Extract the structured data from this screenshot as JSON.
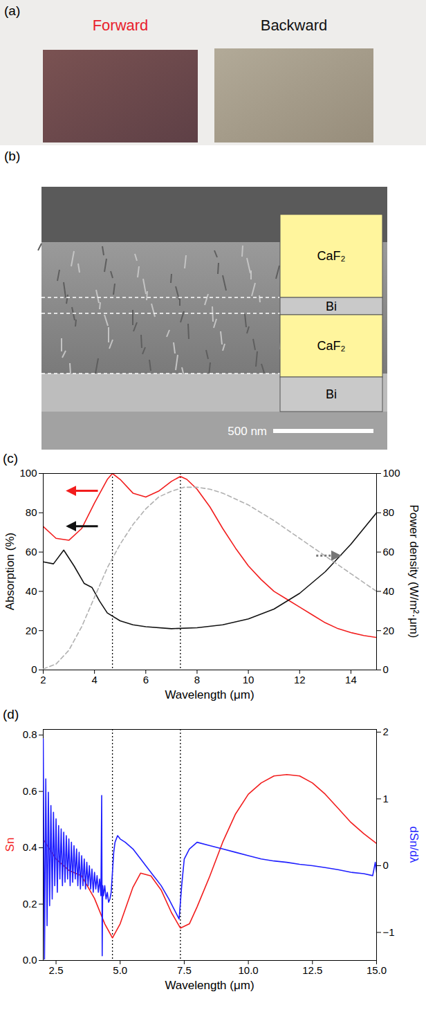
{
  "figure": {
    "panels": [
      {
        "letter": "(a)",
        "labels": [
          {
            "text": "Forward",
            "color": "#e8202a"
          },
          {
            "text": "Backward",
            "color": "#111111"
          }
        ]
      },
      {
        "letter": "(b)",
        "layers": [
          "CaF₂",
          "Bi",
          "CaF₂",
          "Bi"
        ],
        "scale_bar": "500 nm"
      }
    ]
  },
  "chart_data": [
    {
      "panel": "(c)",
      "type": "line",
      "xlabel": "Wavelength (μm)",
      "ylabel": "Absorption (%)",
      "y2label": "Power density (W/m²·μm)",
      "xlim": [
        2,
        15
      ],
      "xticks": [
        2,
        4,
        6,
        8,
        10,
        12,
        14
      ],
      "ylim": [
        0,
        100
      ],
      "yticks": [
        0,
        20,
        40,
        60,
        80,
        100
      ],
      "y2lim": [
        0,
        100
      ],
      "y2ticks": [
        0,
        20,
        40,
        60,
        80,
        100
      ],
      "reference_lines": [
        4.7,
        7.35
      ],
      "series": [
        {
          "color": "#f21d1d",
          "line_style": "solid",
          "x": [
            2,
            2.5,
            3,
            3.5,
            4,
            4.5,
            4.7,
            5,
            5.5,
            6,
            6.5,
            7,
            7.35,
            7.6,
            8,
            8.5,
            9,
            9.5,
            10,
            10.5,
            11,
            11.5,
            12,
            12.5,
            13,
            13.5,
            14,
            14.5,
            15
          ],
          "values": [
            73,
            67,
            66,
            72,
            85,
            97,
            100,
            97,
            90,
            88,
            91,
            96,
            98.5,
            97,
            92,
            83,
            72,
            62,
            53,
            46,
            40,
            36,
            32,
            28,
            24,
            21,
            19,
            17.5,
            16.5
          ]
        },
        {
          "color": "#111111",
          "line_style": "solid",
          "x": [
            2,
            2.4,
            2.8,
            3.2,
            3.6,
            3.9,
            4.2,
            4.5,
            5,
            5.5,
            6,
            7,
            8,
            9,
            10,
            11,
            12,
            13,
            14,
            15
          ],
          "values": [
            55,
            54,
            61,
            53,
            44,
            42,
            35,
            29,
            25,
            23,
            22,
            21,
            21.5,
            23,
            26,
            31,
            39,
            50,
            64,
            80
          ]
        },
        {
          "color": "#b0b0b0",
          "line_style": "dashed",
          "axis": "y2",
          "x": [
            2,
            2.5,
            3,
            3.5,
            4,
            4.5,
            5,
            5.5,
            6,
            6.5,
            7,
            7.5,
            8,
            8.5,
            9,
            10,
            11,
            12,
            13,
            14,
            15
          ],
          "values": [
            0.5,
            3,
            10,
            22,
            37,
            52,
            64,
            74,
            82,
            88,
            91,
            93,
            93,
            92,
            90,
            84,
            76,
            67,
            58,
            49,
            40
          ]
        }
      ]
    },
    {
      "panel": "(d)",
      "type": "line",
      "xlabel": "Wavelength (μm)",
      "ylabel": "Sn",
      "y2label": "dSn/dλ",
      "xlim": [
        2,
        15
      ],
      "xticks": [
        2.5,
        {
          "value": 5,
          "label": "5.0"
        },
        7.5,
        {
          "value": 10,
          "label": "10.0"
        },
        12.5,
        {
          "value": 15,
          "label": "15.0"
        }
      ],
      "ylim": [
        0,
        0.82
      ],
      "yticks": [
        {
          "value": 0,
          "label": "0.0"
        },
        0.2,
        0.4,
        0.6,
        0.8
      ],
      "y2lim": [
        -1.42,
        2.04
      ],
      "y2ticks": [
        {
          "value": -1,
          "label": "−1"
        },
        0,
        1,
        2
      ],
      "reference_lines": [
        4.7,
        7.35
      ],
      "series": [
        {
          "color": "#f21d1d",
          "line_style": "solid",
          "x": [
            2,
            2.5,
            3,
            3.5,
            4,
            4.4,
            4.7,
            5,
            5.5,
            5.8,
            6.2,
            6.6,
            7,
            7.35,
            7.7,
            8,
            8.5,
            9,
            9.5,
            10,
            10.5,
            11,
            11.5,
            12,
            12.5,
            13,
            13.5,
            14,
            14.5,
            15
          ],
          "values": [
            0.43,
            0.36,
            0.32,
            0.3,
            0.22,
            0.13,
            0.08,
            0.13,
            0.26,
            0.31,
            0.3,
            0.25,
            0.17,
            0.115,
            0.13,
            0.19,
            0.3,
            0.42,
            0.52,
            0.59,
            0.63,
            0.655,
            0.66,
            0.655,
            0.63,
            0.59,
            0.54,
            0.49,
            0.45,
            0.415
          ]
        },
        {
          "color": "#1f1fff",
          "line_style": "solid",
          "axis": "y2",
          "x": [
            2,
            2.05,
            2.1,
            2.15,
            2.2,
            2.25,
            2.3,
            2.35,
            2.4,
            2.45,
            2.5,
            2.55,
            2.6,
            2.65,
            2.7,
            2.75,
            2.8,
            2.85,
            2.9,
            2.95,
            3,
            3.05,
            3.1,
            3.15,
            3.2,
            3.25,
            3.3,
            3.35,
            3.4,
            3.45,
            3.5,
            3.55,
            3.6,
            3.65,
            3.7,
            3.75,
            3.8,
            3.85,
            3.9,
            3.95,
            4,
            4.05,
            4.1,
            4.15,
            4.2,
            4.25,
            4.28,
            4.3,
            4.32,
            4.35,
            4.4,
            4.45,
            4.5,
            4.55,
            4.6,
            4.65,
            4.7,
            4.75,
            4.8,
            4.9,
            5,
            5.2,
            5.5,
            5.8,
            6,
            6.3,
            6.6,
            6.9,
            7.1,
            7.3,
            7.4,
            7.5,
            7.7,
            8,
            8.5,
            9,
            9.5,
            10,
            10.5,
            11,
            11.5,
            12,
            12.5,
            13,
            13.5,
            14,
            14.5,
            14.85,
            14.95,
            15
          ],
          "values": [
            1.9,
            -1.4,
            1.3,
            -0.9,
            1.1,
            -0.6,
            0.9,
            -0.5,
            0.8,
            -0.3,
            0.7,
            -0.4,
            0.6,
            -0.2,
            0.55,
            -0.3,
            0.5,
            -0.25,
            0.45,
            -0.2,
            0.4,
            -0.3,
            0.35,
            -0.25,
            0.3,
            -0.2,
            0.25,
            -0.3,
            0.2,
            -0.35,
            0.15,
            -0.3,
            0.1,
            -0.35,
            0.05,
            -0.3,
            0.0,
            -0.35,
            -0.05,
            -0.4,
            -0.1,
            -0.35,
            -0.15,
            -0.4,
            -0.2,
            -0.45,
            1.05,
            -1.35,
            -0.3,
            -0.45,
            -0.3,
            -0.5,
            -0.4,
            -0.55,
            -0.5,
            -0.4,
            -0.1,
            0.2,
            0.35,
            0.45,
            0.4,
            0.35,
            0.25,
            0.1,
            0.0,
            -0.15,
            -0.3,
            -0.5,
            -0.65,
            -0.8,
            -0.3,
            0.1,
            0.25,
            0.35,
            0.3,
            0.25,
            0.2,
            0.15,
            0.1,
            0.07,
            0.05,
            0.02,
            0.0,
            -0.03,
            -0.06,
            -0.1,
            -0.12,
            -0.15,
            0.05,
            -0.1
          ]
        }
      ]
    }
  ]
}
